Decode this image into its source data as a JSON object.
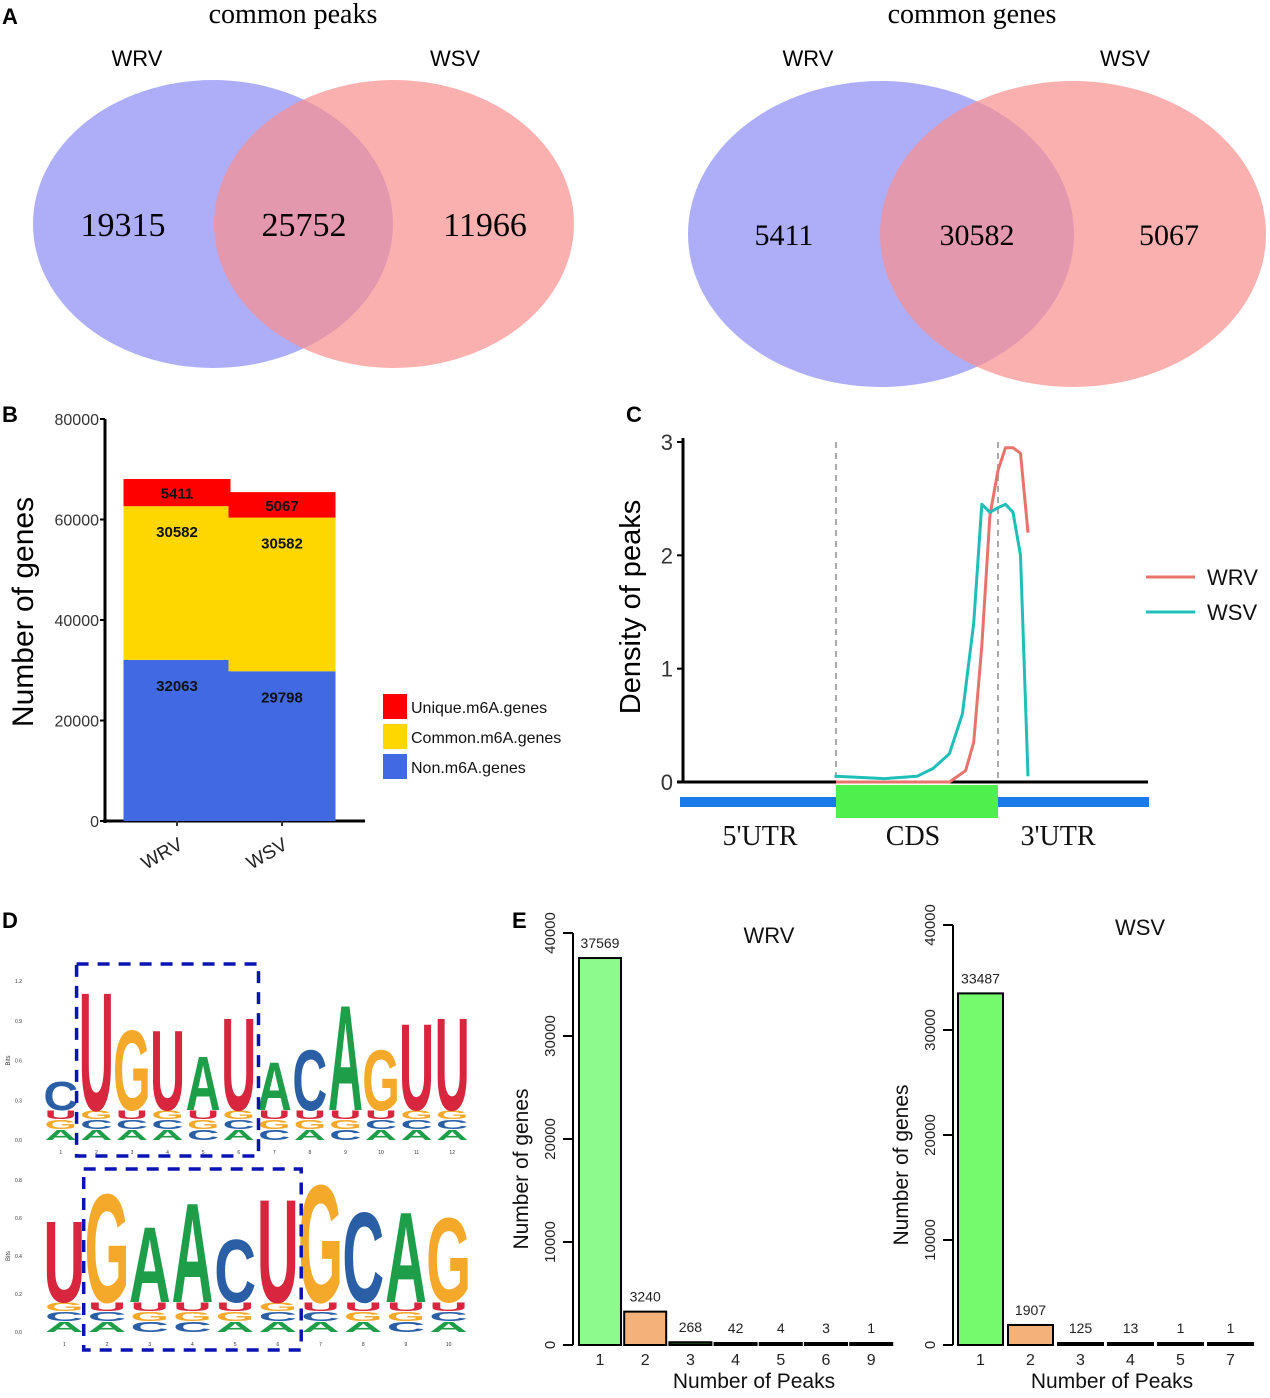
{
  "chart_data": [
    {
      "id": "A1",
      "panel": "A",
      "type": "venn",
      "title": "common peaks",
      "sets": [
        "WRV",
        "WSV"
      ],
      "values": {
        "WRV_only": 19315,
        "both": 25752,
        "WSV_only": 11966
      },
      "colors": {
        "WRV": "#8c8cf5",
        "WSV": "#f98e8e",
        "overlap": "#c179ad"
      }
    },
    {
      "id": "A2",
      "type": "venn",
      "title": "common genes",
      "sets": [
        "WRV",
        "WSV"
      ],
      "values": {
        "WRV_only": 5411,
        "both": 30582,
        "WSV_only": 5067
      },
      "colors": {
        "WRV": "#8c8cf5",
        "WSV": "#f98e8e",
        "overlap": "#c179ad"
      }
    },
    {
      "id": "B",
      "panel": "B",
      "type": "bar",
      "stacked": true,
      "categories": [
        "WRV",
        "WSV"
      ],
      "series": [
        {
          "name": "Non.m6A.genes",
          "values": [
            32063,
            29798
          ],
          "color": "#4169e1"
        },
        {
          "name": "Common.m6A.genes",
          "values": [
            30582,
            30582
          ],
          "color": "#ffd700"
        },
        {
          "name": "Unique.m6A.genes",
          "values": [
            5411,
            5067
          ],
          "color": "#ff0000"
        }
      ],
      "legend_order": [
        "Unique.m6A.genes",
        "Common.m6A.genes",
        "Non.m6A.genes"
      ],
      "legend": "right",
      "xlabel": "",
      "ylabel": "Number of genes",
      "ylim": [
        0,
        80000
      ],
      "yticks": [
        0,
        20000,
        40000,
        60000,
        80000
      ]
    },
    {
      "id": "C",
      "panel": "C",
      "type": "line",
      "ylabel": "Density of peaks",
      "ylim": [
        0,
        3
      ],
      "yticks": [
        0,
        1,
        2,
        3
      ],
      "regions": [
        "5'UTR",
        "CDS",
        "3'UTR"
      ],
      "region_boundaries": [
        1,
        2
      ],
      "x_range": [
        0,
        3
      ],
      "legend": "right",
      "series": [
        {
          "name": "WRV",
          "color": "#e8736b",
          "x": [
            1.0,
            1.6,
            1.7,
            1.8,
            1.85,
            1.9,
            1.95,
            2.0,
            2.05,
            2.1,
            2.15,
            2.2
          ],
          "y": [
            0.0,
            0.0,
            0.0,
            0.1,
            0.35,
            1.2,
            2.35,
            2.75,
            2.95,
            2.95,
            2.9,
            2.2
          ]
        },
        {
          "name": "WSV",
          "color": "#1fbfb8",
          "x": [
            0.99,
            1.0,
            1.3,
            1.5,
            1.6,
            1.7,
            1.78,
            1.85,
            1.9,
            1.95,
            2.0,
            2.05,
            2.1,
            2.15,
            2.2
          ],
          "y": [
            0.05,
            0.05,
            0.03,
            0.05,
            0.12,
            0.25,
            0.6,
            1.4,
            2.45,
            2.38,
            2.42,
            2.45,
            2.38,
            2.0,
            0.05
          ]
        }
      ]
    },
    {
      "id": "D1",
      "panel": "D",
      "type": "sequence-logo",
      "ylabel": "Bits",
      "yticks": [
        "0.0",
        "0.3",
        "0.6",
        "0.9",
        "1.2"
      ],
      "positions": [
        "1",
        "2",
        "3",
        "4",
        "5",
        "6",
        "7",
        "8",
        "9",
        "10",
        "11",
        "12"
      ],
      "consensus": [
        "C",
        "U",
        "G",
        "U",
        "A",
        "U",
        "A",
        "C",
        "A",
        "G",
        "U",
        "U"
      ],
      "heights": [
        0.45,
        1.15,
        0.85,
        0.85,
        0.65,
        0.95,
        0.6,
        0.7,
        1.05,
        0.7,
        0.9,
        0.95
      ],
      "highlight_positions": [
        2,
        6
      ]
    },
    {
      "id": "D2",
      "type": "sequence-logo",
      "ylabel": "Bits",
      "yticks": [
        "0.0",
        "0.2",
        "0.4",
        "0.6",
        "0.8"
      ],
      "positions": [
        "1",
        "2",
        "3",
        "4",
        "5",
        "6",
        "7",
        "8",
        "9",
        "10"
      ],
      "consensus": [
        "U",
        "G",
        "A",
        "A",
        "C",
        "U",
        "G",
        "C",
        "A",
        "G"
      ],
      "heights": [
        0.6,
        0.75,
        0.57,
        0.7,
        0.5,
        0.72,
        0.8,
        0.65,
        0.65,
        0.62
      ],
      "highlight_positions": [
        2,
        6
      ]
    },
    {
      "id": "E1",
      "panel": "E",
      "type": "bar",
      "title": "WRV",
      "categories": [
        "1",
        "2",
        "3",
        "4",
        "5",
        "6",
        "9"
      ],
      "values": [
        37569,
        3240,
        268,
        42,
        4,
        3,
        1
      ],
      "colors": [
        "#8cfa8c",
        "#f4b27a",
        "#1a4d1a",
        "#000000",
        "#000000",
        "#000000",
        "#000000"
      ],
      "xlabel": "Number of Peaks",
      "ylabel": "Number of genes",
      "ylim": [
        0,
        40000
      ],
      "yticks": [
        0,
        10000,
        20000,
        30000,
        40000
      ]
    },
    {
      "id": "E2",
      "type": "bar",
      "title": "WSV",
      "categories": [
        "1",
        "2",
        "3",
        "4",
        "5",
        "7"
      ],
      "values": [
        33487,
        1907,
        125,
        13,
        1,
        1
      ],
      "colors": [
        "#74fa6c",
        "#f4b27a",
        "#000000",
        "#000000",
        "#000000",
        "#000000"
      ],
      "xlabel": "Number of Peaks",
      "ylabel": "Number of genes",
      "ylim": [
        0,
        40000
      ],
      "yticks": [
        0,
        10000,
        20000,
        30000,
        40000
      ]
    }
  ],
  "panel_labels": [
    "A",
    "B",
    "C",
    "D",
    "E"
  ]
}
